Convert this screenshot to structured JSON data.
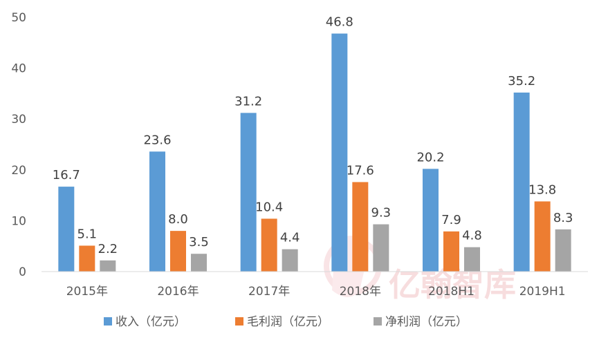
{
  "chart_data": {
    "type": "bar",
    "title": "",
    "xlabel": "",
    "ylabel": "",
    "ylim": [
      0,
      50
    ],
    "yticks": [
      0,
      10,
      20,
      30,
      40,
      50
    ],
    "grid": false,
    "legend_position": "bottom",
    "categories": [
      "2015年",
      "2016年",
      "2017年",
      "2018年",
      "2018H1",
      "2019H1"
    ],
    "series": [
      {
        "name": "收入（亿元）",
        "color": "#5b9bd5",
        "values": [
          16.7,
          23.6,
          31.2,
          46.8,
          20.2,
          35.2
        ]
      },
      {
        "name": "毛利润（亿元）",
        "color": "#ed7d31",
        "values": [
          5.1,
          8.0,
          10.4,
          17.6,
          7.9,
          13.8
        ]
      },
      {
        "name": "净利润（亿元）",
        "color": "#a5a5a5",
        "values": [
          2.2,
          3.5,
          4.4,
          9.3,
          4.8,
          8.3
        ]
      }
    ],
    "data_labels": [
      [
        "16.7",
        "23.6",
        "31.2",
        "46.8",
        "20.2",
        "35.2"
      ],
      [
        "5.1",
        "8.0",
        "10.4",
        "17.6",
        "7.9",
        "13.8"
      ],
      [
        "2.2",
        "3.5",
        "4.4",
        "9.3",
        "4.8",
        "8.3"
      ]
    ]
  },
  "watermark": {
    "text": "亿翰智库",
    "color": "#e8a0a5"
  }
}
